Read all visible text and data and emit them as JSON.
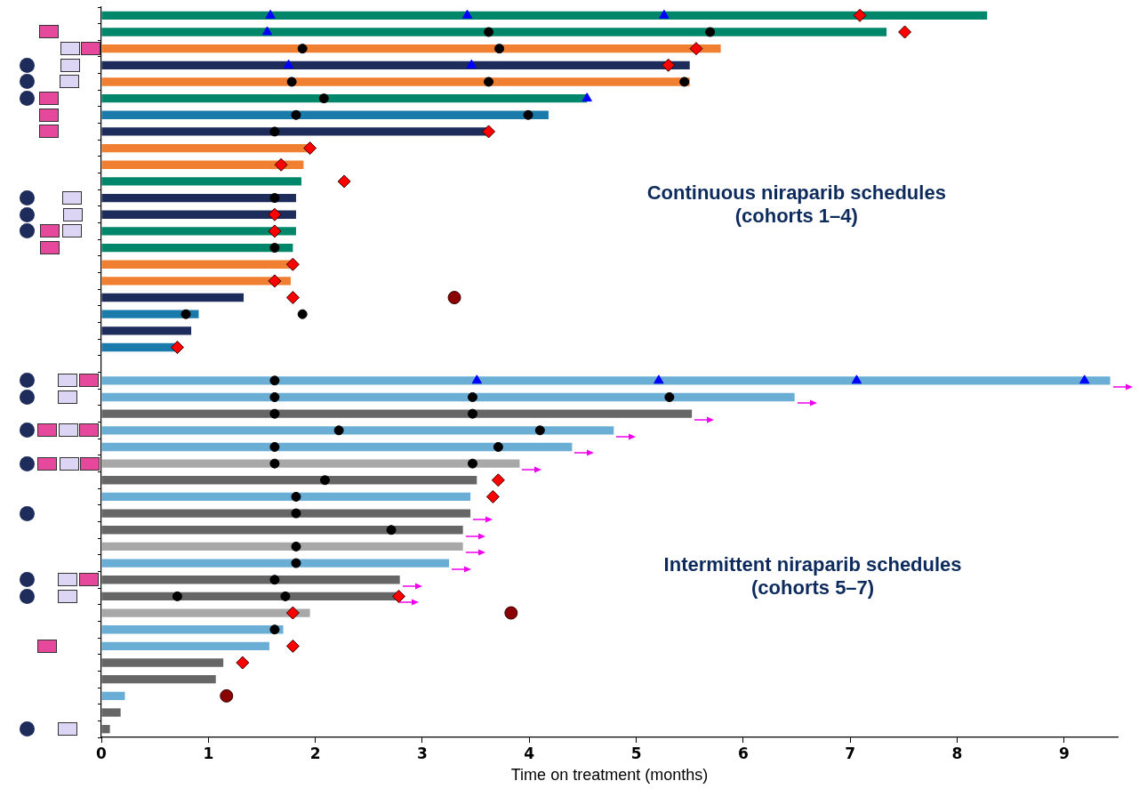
{
  "chart_data": {
    "type": "bar",
    "orientation": "horizontal",
    "tick_labels": "x",
    "legend": false,
    "grid": false,
    "categories": [
      null,
      null,
      null,
      null,
      null,
      null,
      null,
      null,
      null,
      null,
      null,
      null,
      null,
      null,
      null,
      null,
      null,
      null,
      null,
      null,
      null,
      null,
      null,
      null,
      null,
      null,
      null,
      null,
      null,
      null,
      null,
      null,
      null,
      null,
      null,
      null,
      null,
      null,
      null,
      null,
      null,
      null,
      null,
      null
    ],
    "xlim": [
      0,
      9.5
    ],
    "xticks": [
      0,
      1,
      2,
      3,
      4,
      5,
      6,
      7,
      8,
      9
    ],
    "xlabel": "Time on treatment (months)",
    "annotations": [
      "Continuous niraparib schedules\n(cohorts 1–4)",
      "Intermittent niraparib schedules\n(cohorts 5–7)"
    ],
    "series": [
      {
        "values": [
          8.28,
          7.34,
          5.79,
          5.5,
          5.5,
          4.54,
          4.18,
          3.62,
          1.93,
          1.89,
          1.87,
          1.82,
          1.82,
          1.82,
          1.79,
          1.77,
          1.77,
          1.33,
          0.91,
          0.84,
          0.69,
          null,
          9.43,
          6.48,
          5.52,
          4.79,
          4.4,
          3.91,
          3.51,
          3.45,
          3.45,
          3.38,
          3.38,
          3.25,
          2.79,
          2.76,
          1.95,
          1.7,
          1.57,
          1.14,
          1.07,
          0.22,
          0.18,
          0.08
        ],
        "colors": [
          "#00876b",
          "#00876b",
          "#f07f32",
          "#1d2c5b",
          "#f07f32",
          "#00876b",
          "#1a7bab",
          "#1d2c5b",
          "#f07f32",
          "#f07f32",
          "#00876b",
          "#1d2c5b",
          "#1d2c5b",
          "#00876b",
          "#00876b",
          "#f07f32",
          "#f07f32",
          "#1d2c5b",
          "#1a7bab",
          "#1d2c5b",
          "#1a7bab",
          null,
          "#6aaed6",
          "#6aaed6",
          "#666666",
          "#6aaed6",
          "#6aaed6",
          "#a8a8a8",
          "#666666",
          "#6aaed6",
          "#666666",
          "#666666",
          "#a8a8a8",
          "#6aaed6",
          "#666666",
          "#666666",
          "#a8a8a8",
          "#6aaed6",
          "#6aaed6",
          "#666666",
          "#666666",
          "#6aaed6",
          "#666666",
          "#666666"
        ]
      },
      {
        "type": "scatter",
        "marker": "circle",
        "color": "#000000",
        "values": [
          null,
          3.62,
          1.88,
          null,
          1.78,
          2.08,
          1.82,
          1.62,
          null,
          null,
          null,
          1.62,
          null,
          null,
          1.62,
          null,
          null,
          null,
          0.79,
          null,
          null,
          null,
          1.62,
          1.62,
          1.62,
          2.22,
          1.62,
          1.62,
          2.09,
          1.82,
          1.82,
          2.71,
          1.82,
          1.82,
          1.62,
          0.71,
          null,
          1.62,
          null,
          null,
          null,
          null,
          null,
          null
        ]
      },
      {
        "type": "scatter",
        "marker": "circle",
        "color": "#000000",
        "values": [
          null,
          5.69,
          3.72,
          null,
          3.62,
          null,
          3.99,
          null,
          null,
          null,
          null,
          null,
          null,
          null,
          null,
          null,
          null,
          null,
          1.88,
          null,
          null,
          null,
          null,
          3.47,
          3.47,
          4.1,
          3.71,
          3.47,
          null,
          null,
          null,
          null,
          null,
          null,
          null,
          1.72,
          null,
          null,
          null,
          null,
          null,
          null,
          null,
          null
        ]
      },
      {
        "type": "scatter",
        "marker": "circle",
        "color": "#000000",
        "values": [
          null,
          null,
          null,
          null,
          5.45,
          null,
          null,
          null,
          null,
          null,
          null,
          null,
          null,
          null,
          null,
          null,
          null,
          null,
          null,
          null,
          null,
          null,
          null,
          5.31,
          null,
          null,
          null,
          null,
          null,
          null,
          null,
          null,
          null,
          null,
          null,
          null,
          null,
          null,
          null,
          null,
          null,
          null,
          null,
          null
        ]
      },
      {
        "type": "scatter",
        "marker": "triangle",
        "color": "#0000ff",
        "values": [
          1.58,
          1.55,
          null,
          1.75,
          null,
          4.54,
          null,
          null,
          null,
          null,
          null,
          null,
          null,
          null,
          null,
          null,
          null,
          null,
          null,
          null,
          null,
          null,
          3.51,
          null,
          null,
          null,
          null,
          null,
          null,
          null,
          null,
          null,
          null,
          null,
          null,
          null,
          null,
          null,
          null,
          null,
          null,
          null,
          null,
          null
        ]
      },
      {
        "type": "scatter",
        "marker": "triangle",
        "color": "#0000ff",
        "values": [
          3.42,
          null,
          null,
          3.46,
          null,
          null,
          null,
          null,
          null,
          null,
          null,
          null,
          null,
          null,
          null,
          null,
          null,
          null,
          null,
          null,
          null,
          null,
          5.21,
          null,
          null,
          null,
          null,
          null,
          null,
          null,
          null,
          null,
          null,
          null,
          null,
          null,
          null,
          null,
          null,
          null,
          null,
          null,
          null,
          null
        ]
      },
      {
        "type": "scatter",
        "marker": "triangle",
        "color": "#0000ff",
        "values": [
          5.26,
          null,
          null,
          null,
          null,
          null,
          null,
          null,
          null,
          null,
          null,
          null,
          null,
          null,
          null,
          null,
          null,
          null,
          null,
          null,
          null,
          null,
          7.06,
          null,
          null,
          null,
          null,
          null,
          null,
          null,
          null,
          null,
          null,
          null,
          null,
          null,
          null,
          null,
          null,
          null,
          null,
          null,
          null,
          null
        ]
      },
      {
        "type": "scatter",
        "marker": "triangle",
        "color": "#0000ff",
        "values": [
          null,
          null,
          null,
          null,
          null,
          null,
          null,
          null,
          null,
          null,
          null,
          null,
          null,
          null,
          null,
          null,
          null,
          null,
          null,
          null,
          null,
          null,
          9.19,
          null,
          null,
          null,
          null,
          null,
          null,
          null,
          null,
          null,
          null,
          null,
          null,
          null,
          null,
          null,
          null,
          null,
          null,
          null,
          null,
          null
        ]
      },
      {
        "type": "scatter",
        "marker": "diamond",
        "color": "#ff0000",
        "values": [
          7.09,
          7.51,
          5.56,
          5.3,
          null,
          null,
          null,
          3.62,
          1.95,
          1.68,
          2.27,
          null,
          1.62,
          1.62,
          null,
          1.79,
          1.62,
          1.79,
          null,
          null,
          0.71,
          null,
          null,
          null,
          null,
          null,
          null,
          null,
          3.71,
          3.66,
          null,
          null,
          null,
          null,
          null,
          2.78,
          1.79,
          null,
          1.79,
          1.32,
          null,
          null,
          null,
          null
        ]
      },
      {
        "type": "scatter",
        "color": "#8b0000",
        "values": [
          null,
          null,
          null,
          null,
          null,
          null,
          null,
          null,
          null,
          null,
          null,
          null,
          null,
          null,
          null,
          null,
          null,
          3.3,
          null,
          null,
          null,
          null,
          null,
          null,
          null,
          null,
          null,
          null,
          null,
          null,
          null,
          null,
          null,
          null,
          null,
          null,
          3.83,
          null,
          null,
          null,
          null,
          1.17,
          null,
          null
        ]
      }
    ]
  }
}
